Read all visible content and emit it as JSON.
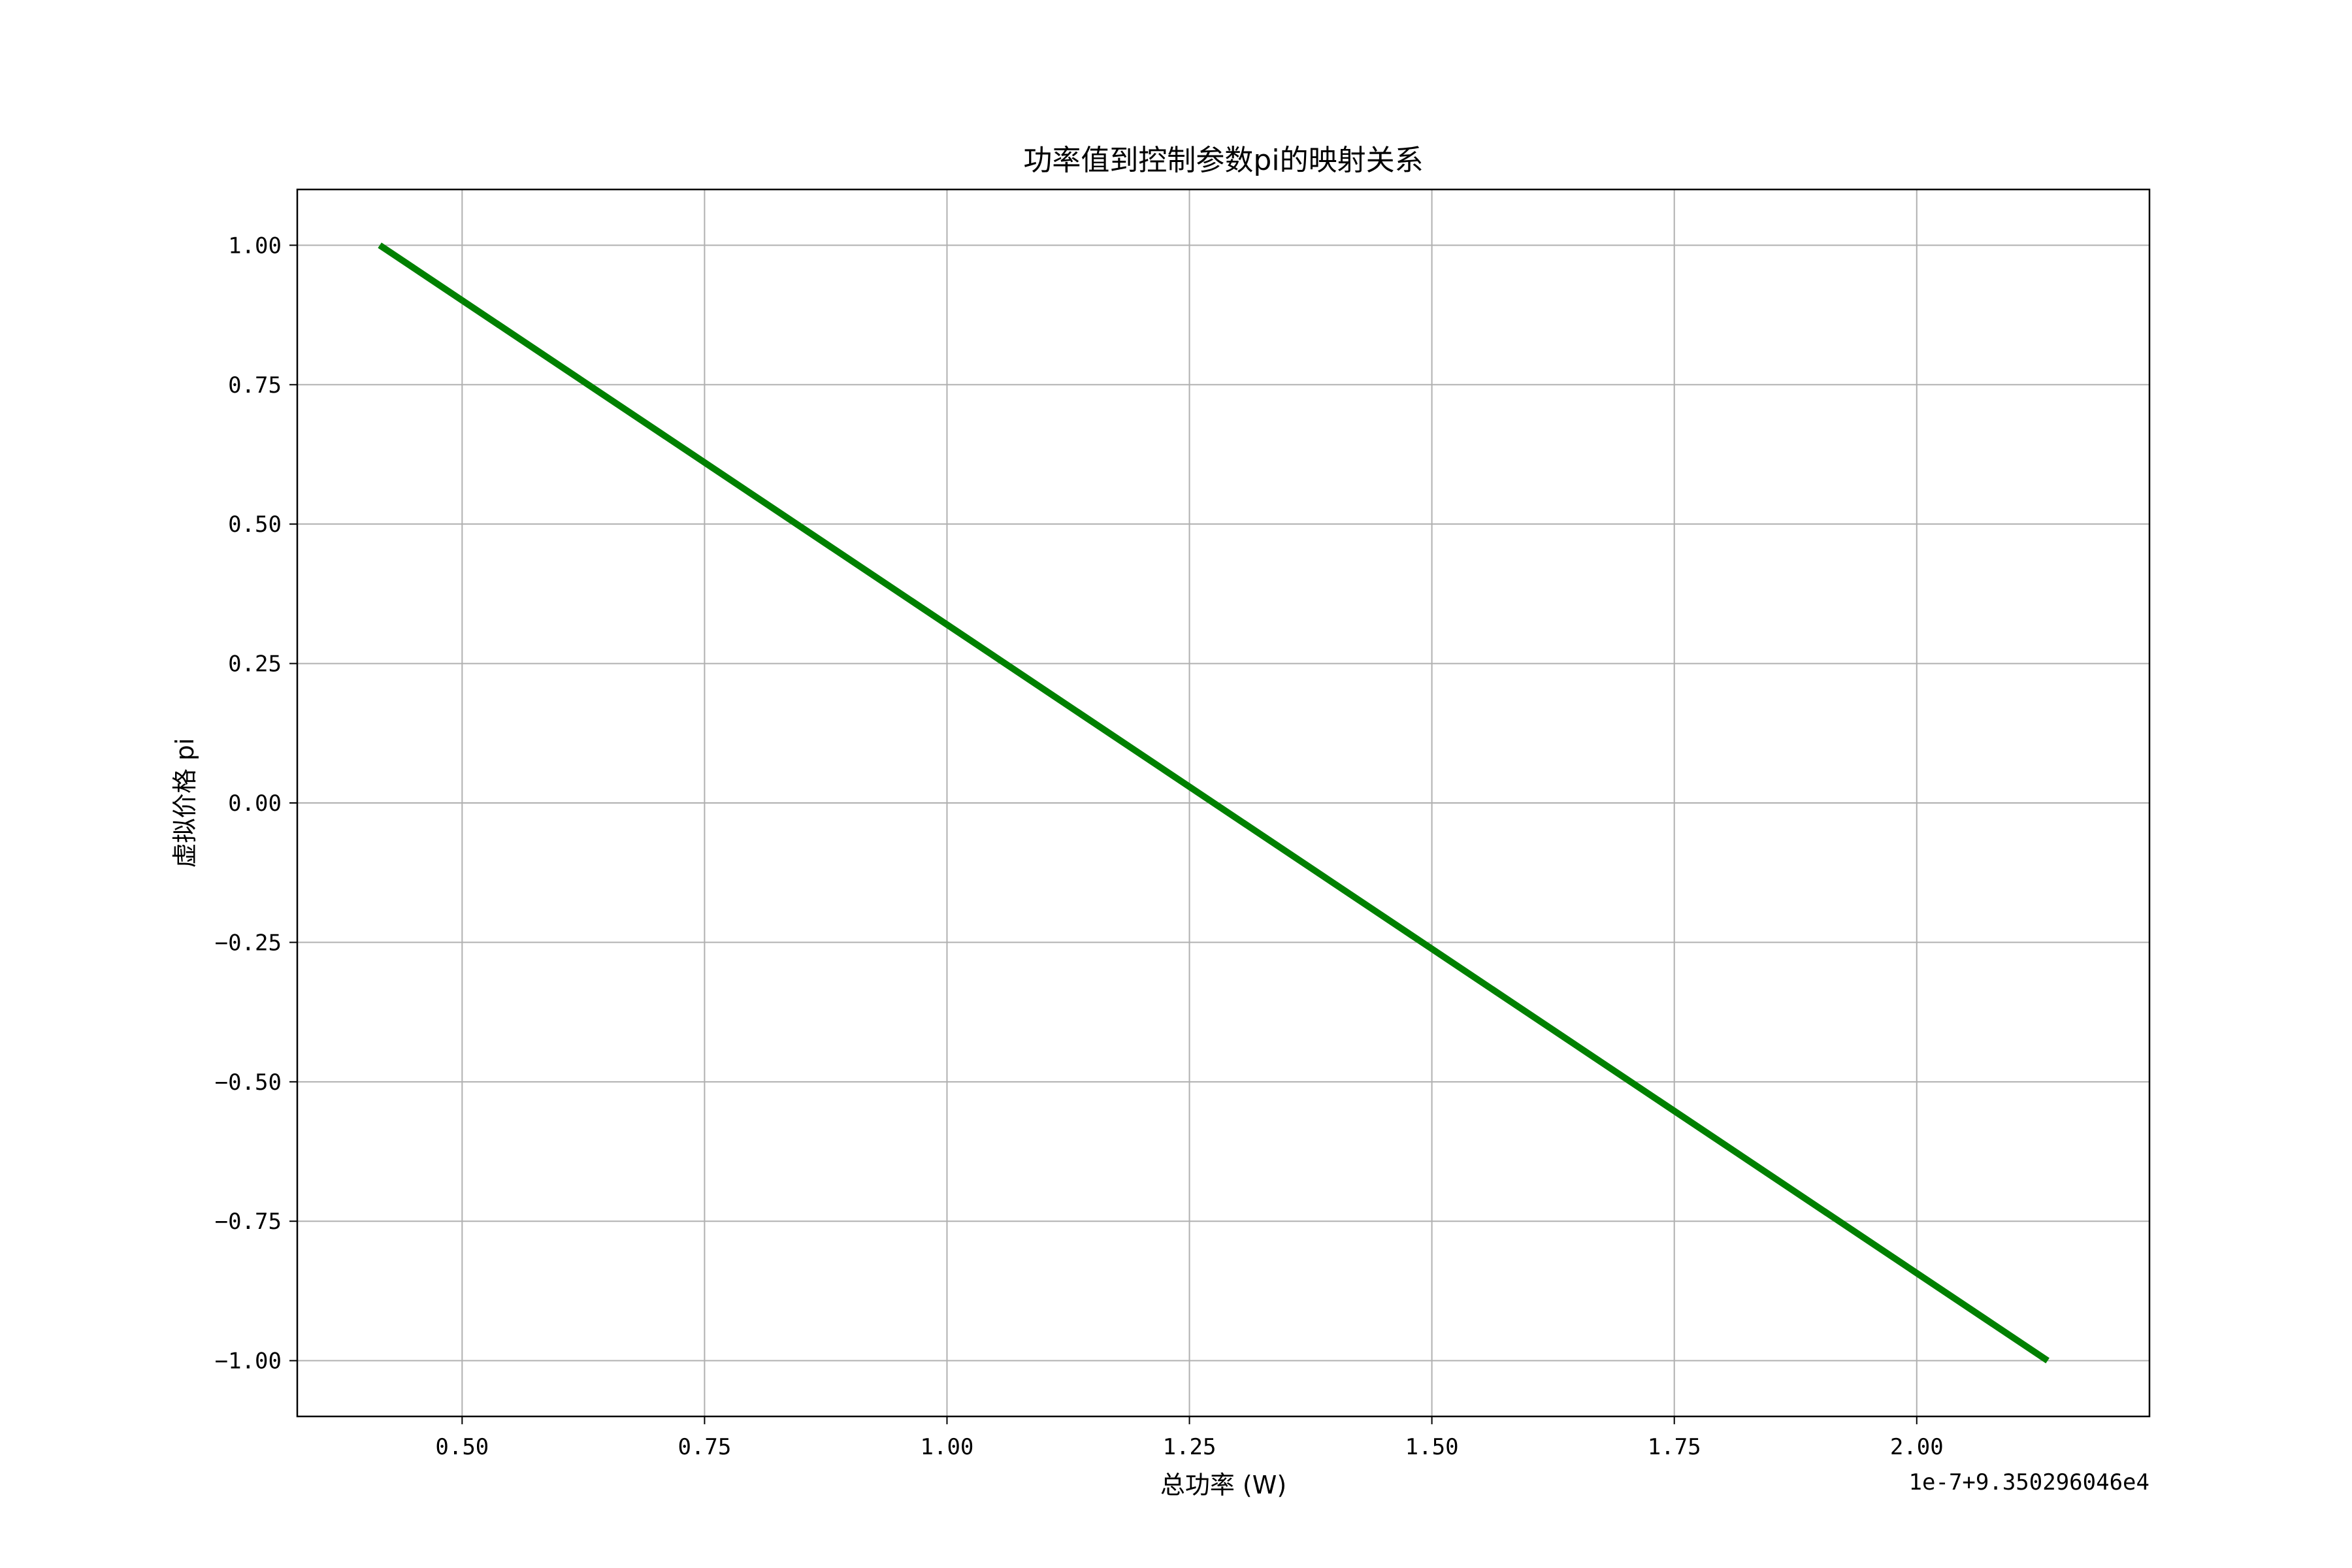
{
  "chart_data": {
    "type": "line",
    "title": "功率值到控制参数pi的映射关系",
    "xlabel": "总功率 (W)",
    "ylabel": "虚拟价格 pi",
    "x_offset_label": "1e-7+9.350296046e4",
    "xlim": [
      0.33,
      2.24
    ],
    "ylim": [
      -1.1,
      1.1
    ],
    "x_ticks": [
      0.5,
      0.75,
      1.0,
      1.25,
      1.5,
      1.75,
      2.0
    ],
    "x_tick_labels": [
      "0.50",
      "0.75",
      "1.00",
      "1.25",
      "1.50",
      "1.75",
      "2.00"
    ],
    "y_ticks": [
      1.0,
      0.75,
      0.5,
      0.25,
      0.0,
      -0.25,
      -0.5,
      -0.75,
      -1.0
    ],
    "y_tick_labels": [
      "1.00",
      "0.75",
      "0.50",
      "0.25",
      "0.00",
      "−0.25",
      "−0.50",
      "−0.75",
      "−1.00"
    ],
    "grid": true,
    "series": [
      {
        "x": [
          0.415,
          2.135
        ],
        "y": [
          1.0,
          -1.0
        ],
        "color": "#008000"
      }
    ]
  }
}
